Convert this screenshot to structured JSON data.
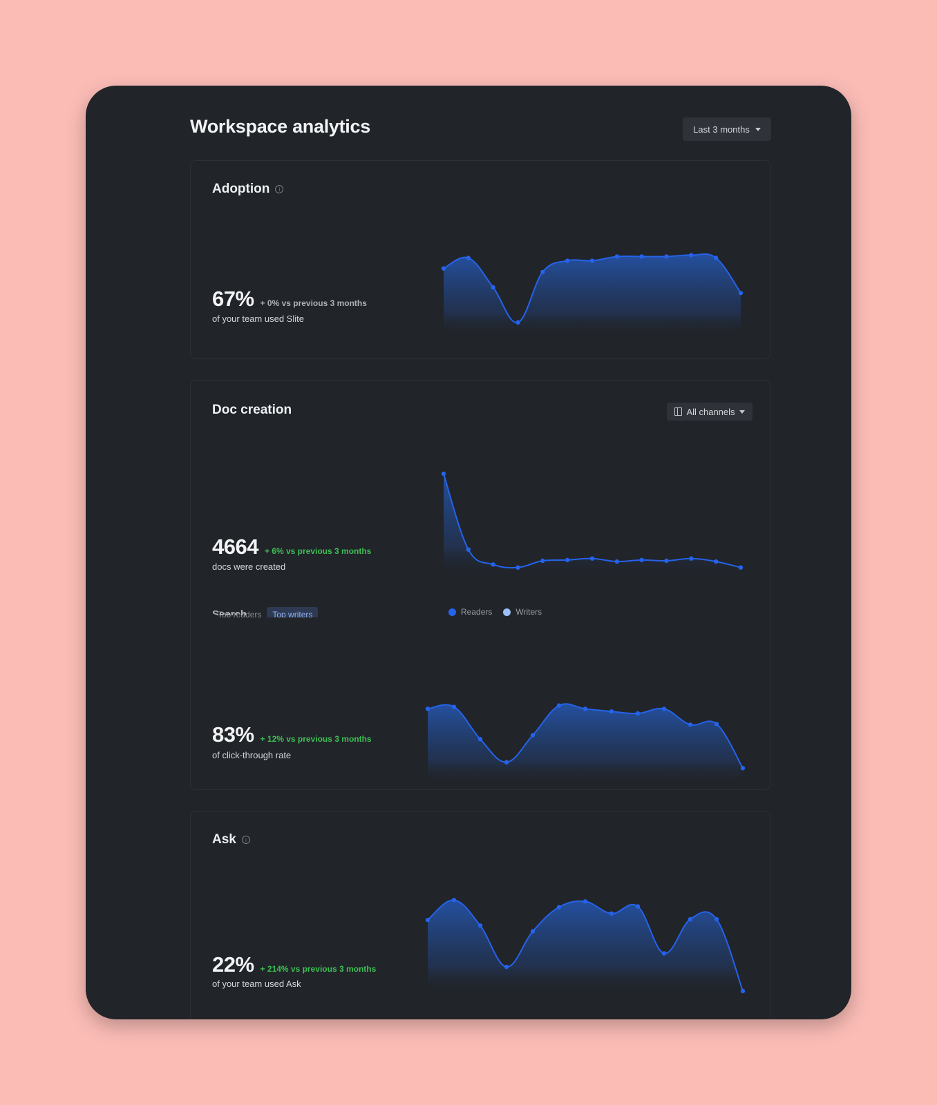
{
  "header": {
    "title": "Workspace analytics",
    "range_label": "Last 3 months"
  },
  "colors": {
    "background": "#FBBCB6",
    "window": "#212429",
    "accent": "#2563EB",
    "positive": "#3DBF55"
  },
  "adoption": {
    "title": "Adoption",
    "value": "67%",
    "delta": "+ 0% vs previous 3 months",
    "caption": "of your team used Slite"
  },
  "doc_creation": {
    "title": "Doc creation",
    "filter_label": "All channels",
    "value": "4664",
    "delta": "+ 6% vs previous 3 months",
    "caption": "docs were created",
    "tabs": [
      "Top readers",
      "Top writers"
    ],
    "legend": [
      "Readers",
      "Writers"
    ]
  },
  "search": {
    "title": "Search",
    "value": "83%",
    "delta": "+ 12% vs previous 3 months",
    "caption": "of click-through rate"
  },
  "ask": {
    "title": "Ask",
    "value": "22%",
    "delta": "+ 214% vs previous 3 months",
    "caption": "of your team used Ask"
  },
  "chart_data": [
    {
      "id": "adoption",
      "type": "area",
      "x": [
        1,
        2,
        3,
        4,
        5,
        6,
        7,
        8,
        9,
        10,
        11,
        12,
        13
      ],
      "values": [
        85,
        100,
        58,
        8,
        80,
        96,
        96,
        102,
        102,
        102,
        104,
        100,
        50
      ],
      "ylim": [
        0,
        130
      ]
    },
    {
      "id": "doc_creation",
      "type": "area",
      "x": [
        1,
        2,
        3,
        4,
        5,
        6,
        7,
        8,
        9,
        10,
        11,
        12,
        13
      ],
      "values": [
        128,
        27,
        7,
        3,
        12,
        13,
        15,
        11,
        13,
        12,
        15,
        11,
        3
      ],
      "ylim": [
        0,
        128
      ]
    },
    {
      "id": "search",
      "type": "area",
      "x": [
        1,
        2,
        3,
        4,
        5,
        6,
        7,
        8,
        9,
        10,
        11,
        12,
        13
      ],
      "values": [
        95,
        98,
        49,
        14,
        55,
        100,
        95,
        91,
        88,
        95,
        71,
        72,
        5
      ],
      "ylim": [
        0,
        130
      ]
    },
    {
      "id": "ask",
      "type": "area",
      "x": [
        1,
        2,
        3,
        4,
        5,
        6,
        7,
        8,
        9,
        10,
        11,
        12,
        13
      ],
      "values": [
        100,
        128,
        92,
        34,
        84,
        118,
        126,
        109,
        119,
        53,
        101,
        101,
        0
      ],
      "ylim": [
        0,
        135
      ]
    }
  ]
}
